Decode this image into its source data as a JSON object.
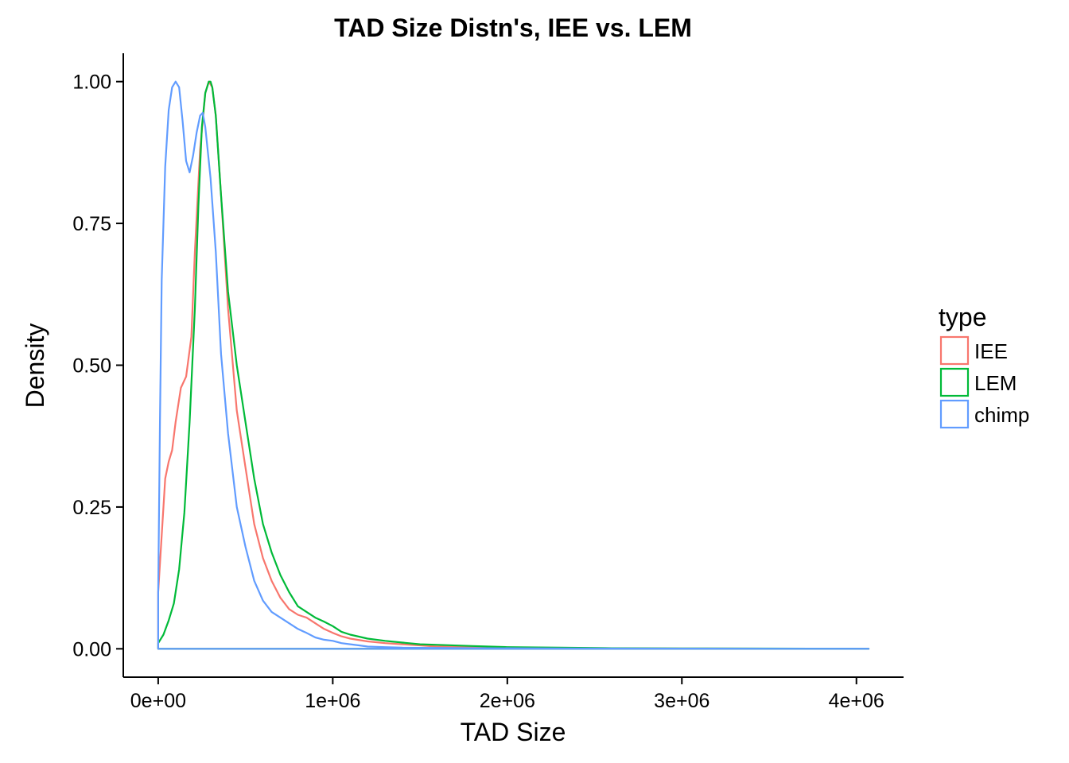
{
  "chart_data": {
    "type": "line",
    "title": "TAD Size Distn's, IEE vs. LEM",
    "xlabel": "TAD Size",
    "ylabel": "Density",
    "xlim": [
      -200000,
      4270000
    ],
    "ylim": [
      -0.05,
      1.05
    ],
    "x_ticks": [
      0,
      1000000,
      2000000,
      3000000,
      4000000
    ],
    "x_tick_labels": [
      "0e+00",
      "1e+06",
      "2e+06",
      "3e+06",
      "4e+06"
    ],
    "y_ticks": [
      0,
      0.25,
      0.5,
      0.75,
      1.0
    ],
    "y_tick_labels": [
      "0.00",
      "0.25",
      "0.50",
      "0.75",
      "1.00"
    ],
    "grid": false,
    "legend": {
      "title": "type",
      "position": "right"
    },
    "series": [
      {
        "name": "IEE",
        "color": "#F8766D",
        "x": [
          0,
          20000,
          40000,
          60000,
          80000,
          100000,
          130000,
          160000,
          190000,
          210000,
          240000,
          270000,
          290000,
          310000,
          330000,
          360000,
          400000,
          450000,
          500000,
          550000,
          600000,
          650000,
          700000,
          750000,
          800000,
          850000,
          900000,
          950000,
          1000000,
          1050000,
          1100000,
          1200000,
          1300000,
          1400000,
          1500000,
          1600000,
          1800000,
          2000000,
          2300000,
          2600000,
          3000000,
          3500000,
          4070000
        ],
        "y": [
          0.1,
          0.2,
          0.3,
          0.33,
          0.35,
          0.4,
          0.46,
          0.48,
          0.55,
          0.7,
          0.88,
          0.98,
          1.0,
          0.99,
          0.94,
          0.8,
          0.6,
          0.42,
          0.32,
          0.22,
          0.16,
          0.12,
          0.09,
          0.07,
          0.06,
          0.055,
          0.045,
          0.035,
          0.028,
          0.022,
          0.018,
          0.013,
          0.01,
          0.008,
          0.006,
          0.004,
          0.003,
          0.002,
          0.001,
          0.0008,
          0.0005,
          0.0003,
          0.0001
        ]
      },
      {
        "name": "LEM",
        "color": "#00BA38",
        "x": [
          0,
          30000,
          60000,
          90000,
          120000,
          150000,
          180000,
          210000,
          230000,
          250000,
          270000,
          290000,
          300000,
          310000,
          330000,
          360000,
          400000,
          450000,
          500000,
          550000,
          600000,
          650000,
          700000,
          750000,
          800000,
          850000,
          900000,
          950000,
          1000000,
          1050000,
          1100000,
          1200000,
          1300000,
          1400000,
          1500000,
          1600000,
          1800000,
          2000000,
          2300000,
          2600000,
          3000000,
          3500000,
          4070000
        ],
        "y": [
          0.01,
          0.025,
          0.05,
          0.08,
          0.14,
          0.24,
          0.4,
          0.6,
          0.78,
          0.92,
          0.98,
          1.0,
          1.0,
          0.99,
          0.94,
          0.8,
          0.63,
          0.5,
          0.4,
          0.3,
          0.22,
          0.17,
          0.13,
          0.1,
          0.075,
          0.065,
          0.055,
          0.048,
          0.04,
          0.03,
          0.025,
          0.018,
          0.014,
          0.011,
          0.008,
          0.007,
          0.005,
          0.003,
          0.002,
          0.001,
          0.0007,
          0.0004,
          0.0001
        ]
      },
      {
        "name": "chimp",
        "color": "#619CFF",
        "x": [
          0,
          10000,
          20000,
          40000,
          60000,
          80000,
          100000,
          120000,
          140000,
          160000,
          180000,
          200000,
          220000,
          240000,
          255000,
          270000,
          300000,
          330000,
          360000,
          400000,
          450000,
          500000,
          550000,
          600000,
          650000,
          700000,
          750000,
          800000,
          850000,
          900000,
          950000,
          1000000,
          1050000,
          1100000,
          1150000,
          1200000,
          1300000,
          1400000,
          1600000,
          1800000,
          2100000,
          2500000,
          3000000,
          3500000,
          4070000
        ],
        "y": [
          0.1,
          0.4,
          0.65,
          0.85,
          0.95,
          0.99,
          1.0,
          0.99,
          0.93,
          0.86,
          0.84,
          0.87,
          0.91,
          0.94,
          0.945,
          0.92,
          0.83,
          0.7,
          0.52,
          0.38,
          0.25,
          0.18,
          0.12,
          0.085,
          0.065,
          0.055,
          0.045,
          0.035,
          0.028,
          0.02,
          0.016,
          0.014,
          0.01,
          0.008,
          0.006,
          0.004,
          0.003,
          0.002,
          0.0015,
          0.001,
          0.0008,
          0.0005,
          0.0003,
          0.0002,
          0.0001
        ]
      }
    ]
  }
}
